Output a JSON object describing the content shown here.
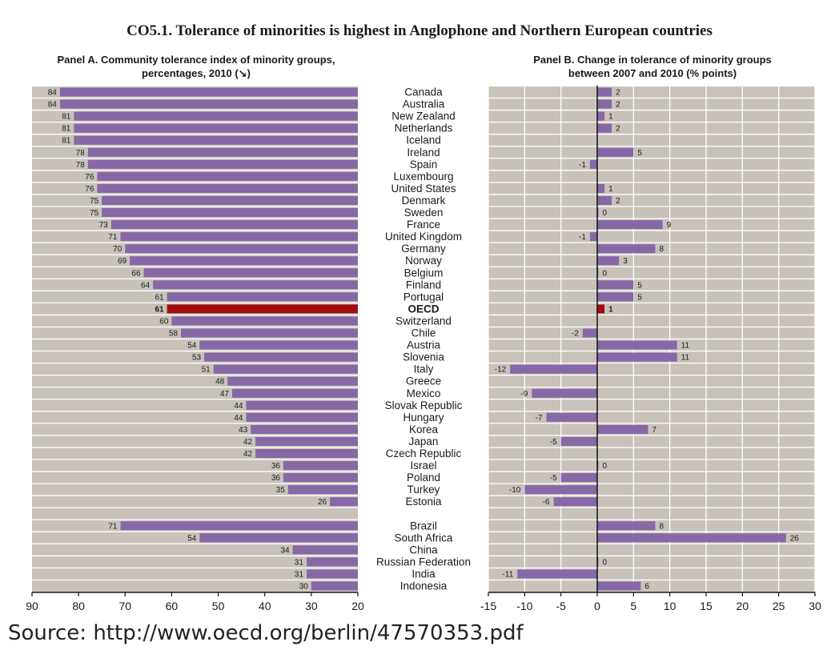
{
  "chart_data": {
    "type": "bar",
    "title": "CO5.1.  Tolerance of minorities is highest in Anglophone and Northern European countries",
    "countries": [
      "Canada",
      "Australia",
      "New Zealand",
      "Netherlands",
      "Iceland",
      "Ireland",
      "Spain",
      "Luxembourg",
      "United States",
      "Denmark",
      "Sweden",
      "France",
      "United Kingdom",
      "Germany",
      "Norway",
      "Belgium",
      "Finland",
      "Portugal",
      "OECD",
      "Switzerland",
      "Chile",
      "Austria",
      "Slovenia",
      "Italy",
      "Greece",
      "Mexico",
      "Slovak Republic",
      "Hungary",
      "Korea",
      "Japan",
      "Czech Republic",
      "Israel",
      "Poland",
      "Turkey",
      "Estonia",
      "",
      "Brazil",
      "South Africa",
      "China",
      "Russian Federation",
      "India",
      "Indonesia"
    ],
    "highlight": "OECD",
    "panel_a": {
      "title_line1": "Panel A. Community tolerance index of minority groups,",
      "title_line2": "percentages, 2010 (↘)",
      "values": [
        84,
        84,
        81,
        81,
        81,
        78,
        78,
        76,
        76,
        75,
        75,
        73,
        71,
        70,
        69,
        66,
        64,
        61,
        61,
        60,
        58,
        54,
        53,
        51,
        48,
        47,
        44,
        44,
        43,
        42,
        42,
        36,
        36,
        35,
        26,
        null,
        71,
        54,
        34,
        31,
        31,
        30
      ],
      "xlim": [
        90,
        20
      ],
      "ticks": [
        "90",
        "80",
        "70",
        "60",
        "50",
        "40",
        "30",
        "20"
      ]
    },
    "panel_b": {
      "title_line1": "Panel B. Change in tolerance of minority groups",
      "title_line2": "between 2007 and 2010 (% points)",
      "values": [
        2,
        2,
        1,
        2,
        null,
        5,
        -1,
        null,
        1,
        2,
        0,
        9,
        -1,
        8,
        3,
        0,
        5,
        5,
        1,
        null,
        -2,
        11,
        11,
        -12,
        null,
        -9,
        null,
        -7,
        7,
        -5,
        null,
        0,
        -5,
        -10,
        -6,
        null,
        8,
        26,
        null,
        0,
        -11,
        6
      ],
      "xlim": [
        -15,
        30
      ],
      "ticks": [
        "-15",
        "-10",
        "-5",
        "0",
        "5",
        "10",
        "15",
        "20",
        "25",
        "30"
      ]
    },
    "colors": {
      "bar": "#8668a6",
      "bar_highlight": "#a00c10",
      "background": "#c8c2bb",
      "grid": "#ffffff"
    }
  },
  "source": "Source: http://www.oecd.org/berlin/47570353.pdf"
}
